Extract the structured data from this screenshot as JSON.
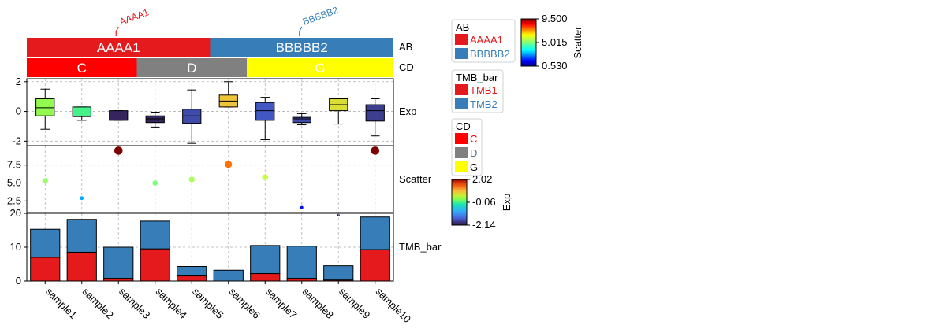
{
  "chart_data": {
    "type": "heatmap",
    "samples": [
      "sample1",
      "sample2",
      "sample3",
      "sample4",
      "sample5",
      "sample6",
      "sample7",
      "sample8",
      "sample9",
      "sample10"
    ],
    "annotations": {
      "AB": {
        "label": "AB",
        "groups": [
          {
            "name": "AAAA1",
            "count": 5,
            "color": "#e41a1c"
          },
          {
            "name": "BBBBB2",
            "count": 5,
            "color": "#377eb8"
          }
        ]
      },
      "CD": {
        "label": "CD",
        "groups": [
          {
            "name": "C",
            "count": 3,
            "color": "#ff0000"
          },
          {
            "name": "D",
            "count": 3,
            "color": "#808080"
          },
          {
            "name": "G",
            "count": 4,
            "color": "#ffff00"
          }
        ]
      }
    },
    "exp": {
      "label": "Exp",
      "ylim": [
        -2.3,
        2.2
      ],
      "yticks": [
        2,
        0,
        -2
      ],
      "colorbar": {
        "label": "Exp",
        "ticks": [
          "2.02",
          "-0.06",
          "-2.14"
        ],
        "min": -2.14,
        "max": 2.02
      },
      "boxes": [
        {
          "whisker_low": -1.2,
          "q1": -0.3,
          "median": 0.25,
          "q3": 0.85,
          "whisker_high": 1.5,
          "mean": 0.3
        },
        {
          "whisker_low": -0.6,
          "q1": -0.35,
          "median": -0.1,
          "q3": 0.3,
          "whisker_high": 0.3,
          "mean": -0.06
        },
        {
          "whisker_low": -0.6,
          "q1": -0.6,
          "median": -0.1,
          "q3": 0.05,
          "whisker_high": 0.05,
          "mean": -2.0
        },
        {
          "whisker_low": -1.05,
          "q1": -0.75,
          "median": -0.5,
          "q3": -0.3,
          "whisker_high": -0.05,
          "mean": -2.0
        },
        {
          "whisker_low": -2.15,
          "q1": -0.8,
          "median": -0.3,
          "q3": 0.15,
          "whisker_high": 1.45,
          "mean": -1.7
        },
        {
          "whisker_low": 0.3,
          "q1": 0.3,
          "median": 0.7,
          "q3": 1.1,
          "whisker_high": 2.0,
          "mean": 0.9
        },
        {
          "whisker_low": -1.9,
          "q1": -0.6,
          "median": 0.05,
          "q3": 0.6,
          "whisker_high": 0.95,
          "mean": -1.6
        },
        {
          "whisker_low": -0.9,
          "q1": -0.75,
          "median": -0.5,
          "q3": -0.4,
          "whisker_high": -0.15,
          "mean": -1.7
        },
        {
          "whisker_low": -0.85,
          "q1": 0.05,
          "median": 0.45,
          "q3": 0.85,
          "whisker_high": 0.85,
          "mean": 0.7
        },
        {
          "whisker_low": -1.65,
          "q1": -0.65,
          "median": 0.05,
          "q3": 0.45,
          "whisker_high": 0.85,
          "mean": -1.8
        }
      ]
    },
    "scatter": {
      "label": "Scatter",
      "ylim": [
        0.9,
        10.2
      ],
      "yticks": [
        "2.5",
        "5.0",
        "7.5"
      ],
      "values": [
        5.3,
        2.9,
        9.5,
        5.0,
        5.5,
        7.6,
        5.8,
        1.6,
        0.53,
        9.5
      ],
      "colorbar": {
        "label": "Scatter",
        "ticks": [
          "9.500",
          "5.015",
          "0.530"
        ],
        "min": 0.53,
        "max": 9.5
      }
    },
    "tmb": {
      "label": "TMB_bar",
      "ylim": [
        0,
        20
      ],
      "yticks": [
        "0",
        "10",
        "20"
      ],
      "series": [
        {
          "name": "TMB1",
          "color": "#e41a1c",
          "values": [
            7.0,
            8.5,
            0.8,
            9.5,
            1.5,
            0.0,
            2.2,
            0.8,
            0.3,
            9.3
          ]
        },
        {
          "name": "TMB2",
          "color": "#377eb8",
          "values": [
            8.3,
            9.7,
            9.2,
            8.2,
            2.8,
            3.2,
            8.3,
            9.5,
            4.2,
            9.6
          ]
        }
      ]
    },
    "legends": {
      "ab_title": "AB",
      "tmb_title": "TMB_bar",
      "cd_title": "CD"
    },
    "grid": true
  }
}
